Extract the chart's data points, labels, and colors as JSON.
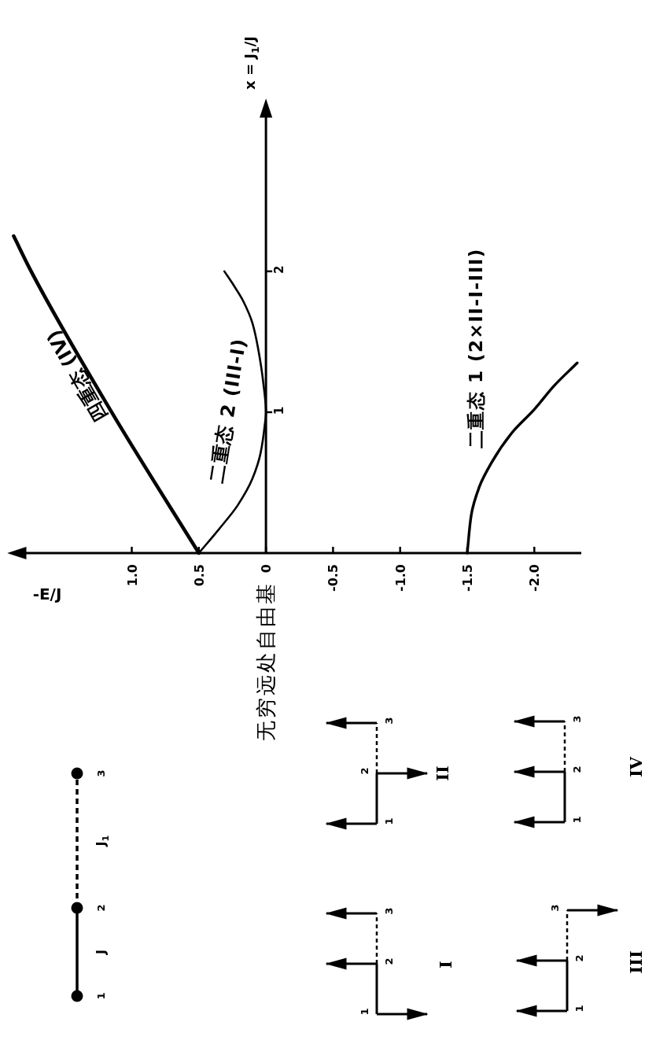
{
  "chart_data": {
    "type": "line",
    "xlabel": "-E/J",
    "ylabel": "x = J$_{1}$/J",
    "xlim": [
      1.9,
      -2.35
    ],
    "ylim": [
      0,
      3.2
    ],
    "xticks": [
      {
        "value": 1,
        "label": "1.0"
      },
      0.5,
      0,
      -0.5,
      {
        "value": -1,
        "label": "-1.0"
      },
      -1.5,
      {
        "value": -2,
        "label": "-2.0"
      }
    ],
    "yticks": [
      1,
      2
    ],
    "series": [
      {
        "name": "四重态 (IV)",
        "color": "#000000",
        "x": [
          0.5,
          1.15,
          1.75,
          1.88
        ],
        "values": [
          0,
          1,
          2,
          2.25
        ]
      },
      {
        "name": "二重态 2 (III-I)",
        "color": "#000000",
        "x": [
          0.5,
          0.35,
          0.21,
          0.1,
          0.04,
          0.01,
          0,
          0.02,
          0.06,
          0.1,
          0.17,
          0.24,
          0.31
        ],
        "values": [
          0,
          0.17,
          0.34,
          0.53,
          0.71,
          0.9,
          1.0,
          1.21,
          1.46,
          1.63,
          1.79,
          1.9,
          2.0
        ]
      },
      {
        "name": "二重态 1 (2×II-I-III)",
        "color": "#000000",
        "x": [
          -1.5,
          -1.53,
          -1.59,
          -1.68,
          -1.83,
          -2.0,
          -2.15,
          -2.32
        ],
        "values": [
          0,
          0.27,
          0.47,
          0.64,
          0.85,
          1.02,
          1.19,
          1.35
        ]
      }
    ],
    "annotations": [
      "无穷远处自由基",
      "1",
      "2",
      "3",
      "J",
      "J$_{1}$",
      "I",
      "II",
      "III",
      "IV"
    ]
  }
}
